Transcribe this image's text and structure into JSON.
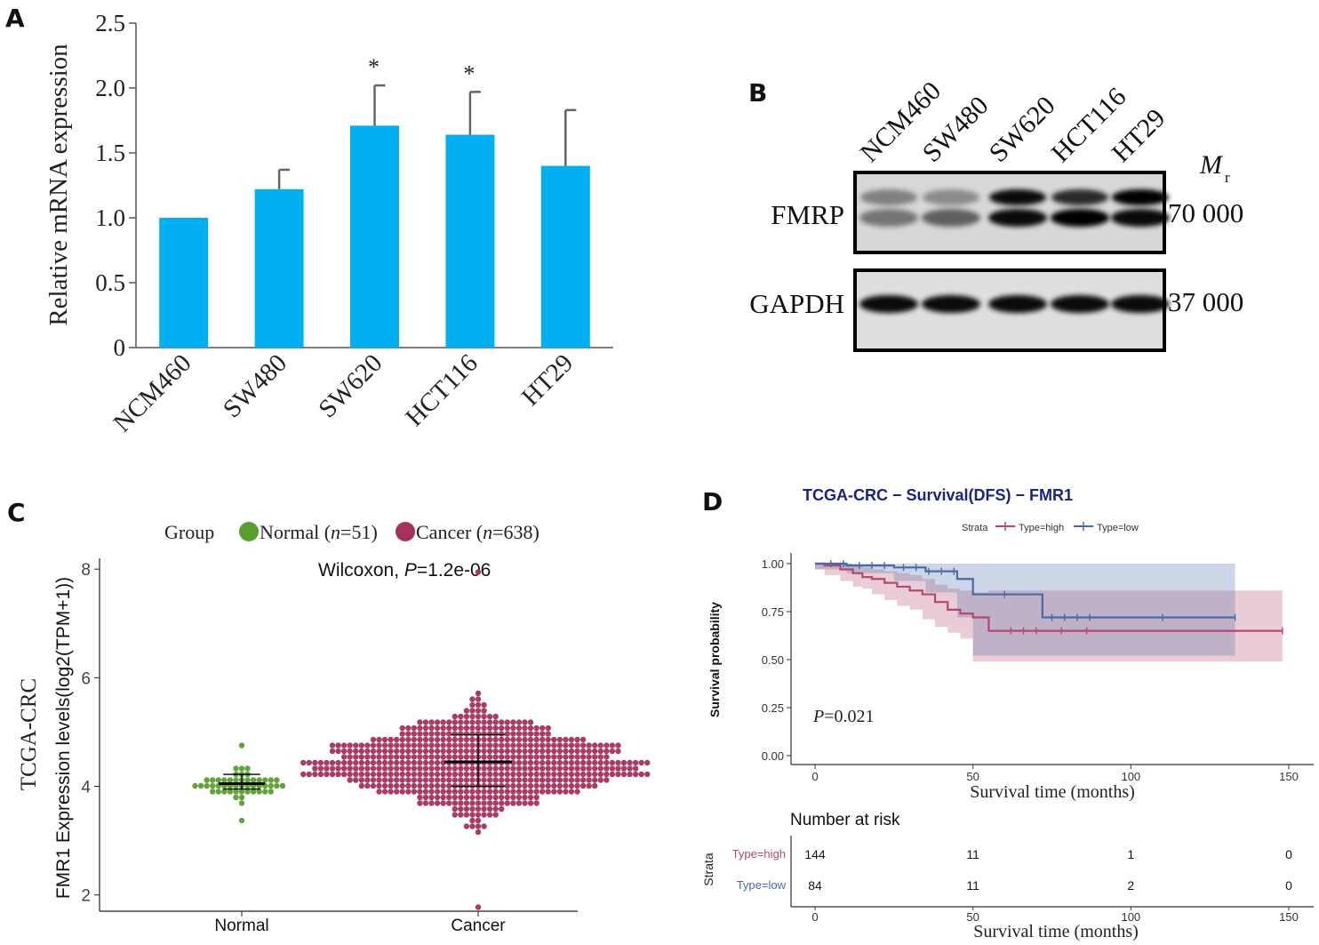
{
  "panels": {
    "a": "A",
    "b": "B",
    "c": "C",
    "d": "D"
  },
  "chart_data": [
    {
      "type": "bar",
      "panel": "A",
      "ylabel": "Relative mRNA expression",
      "ylim": [
        0,
        2.5
      ],
      "yticks": [
        "0",
        "0.5",
        "1.0",
        "1.5",
        "2.0",
        "2.5"
      ],
      "categories": [
        "NCM460",
        "SW480",
        "SW620",
        "HCT116",
        "HT29"
      ],
      "values": [
        1.0,
        1.22,
        1.71,
        1.64,
        1.4
      ],
      "errors": [
        0.0,
        0.15,
        0.31,
        0.33,
        0.43
      ],
      "significance": [
        "",
        "",
        "*",
        "*",
        ""
      ],
      "bar_color": "#00b0f0"
    },
    {
      "type": "scatter",
      "panel": "C",
      "title_side": "TCGA-CRC",
      "ylabel": "FMR1 Expression levels(log2(TPM+1))",
      "legend_title": "Group",
      "legend": [
        {
          "label": "Normal (n=51)",
          "color": "#5a9e32"
        },
        {
          "label": "Cancer (n=638)",
          "color": "#a3325f"
        }
      ],
      "annotation": "Wilcoxon,  P=1.2e-06",
      "ylim": [
        1.7,
        8.2
      ],
      "yticks": [
        "2",
        "4",
        "6",
        "8"
      ],
      "categories": [
        "Normal",
        "Cancer"
      ],
      "series": [
        {
          "name": "Normal",
          "n": 51,
          "median": 4.05,
          "q1": 3.95,
          "q3": 4.22,
          "min": 3.35,
          "max": 4.8
        },
        {
          "name": "Cancer",
          "n": 638,
          "median": 4.45,
          "q1": 4.0,
          "q3": 4.95,
          "min": 1.8,
          "max": 7.9
        }
      ]
    },
    {
      "type": "line",
      "panel": "D",
      "title": "TCGA-CRC − Survival(DFS) − FMR1",
      "legend_title": "Strata",
      "legend": [
        {
          "label": "Type=high",
          "color": "#b5486b"
        },
        {
          "label": "Type=low",
          "color": "#4a6aa5"
        }
      ],
      "xlabel": "Survival time (months)",
      "ylabel": "Survival probability",
      "xlim": [
        0,
        150
      ],
      "ylim": [
        0,
        1
      ],
      "xticks": [
        "0",
        "50",
        "100",
        "150"
      ],
      "yticks": [
        "0.00",
        "0.25",
        "0.50",
        "0.75",
        "1.00"
      ],
      "annotation": "P=0.021",
      "series": [
        {
          "name": "Type=high",
          "x": [
            0,
            3,
            8,
            12,
            15,
            18,
            22,
            26,
            30,
            34,
            38,
            42,
            46,
            50,
            55,
            148
          ],
          "y": [
            1.0,
            0.99,
            0.97,
            0.95,
            0.93,
            0.92,
            0.9,
            0.88,
            0.86,
            0.84,
            0.8,
            0.76,
            0.74,
            0.72,
            0.65,
            0.65
          ],
          "ci_upper": [
            1.0,
            1.0,
            1.0,
            0.99,
            0.98,
            0.97,
            0.96,
            0.95,
            0.94,
            0.92,
            0.89,
            0.87,
            0.86,
            0.85,
            0.86,
            0.86
          ],
          "ci_lower": [
            1.0,
            0.97,
            0.94,
            0.91,
            0.88,
            0.87,
            0.84,
            0.81,
            0.78,
            0.76,
            0.71,
            0.67,
            0.64,
            0.61,
            0.49,
            0.49
          ]
        },
        {
          "name": "Type=low",
          "x": [
            0,
            10,
            25,
            35,
            45,
            50,
            72,
            133
          ],
          "y": [
            1.0,
            0.99,
            0.98,
            0.96,
            0.92,
            0.84,
            0.72,
            0.72
          ],
          "ci_upper": [
            1.0,
            1.0,
            1.0,
            1.0,
            1.0,
            1.0,
            1.0,
            1.0
          ],
          "ci_lower": [
            1.0,
            0.97,
            0.95,
            0.91,
            0.85,
            0.72,
            0.52,
            0.52
          ]
        }
      ],
      "risk_table": {
        "title": "Number at risk",
        "ylabel": "Strata",
        "rows": [
          {
            "label": "Type=high",
            "values": [
              "144",
              "11",
              "1",
              "0"
            ]
          },
          {
            "label": "Type=low",
            "values": [
              "84",
              "11",
              "2",
              "0"
            ]
          }
        ],
        "xlabel": "Survival time (months)"
      }
    }
  ],
  "blot": {
    "panel": "B",
    "lanes": [
      "NCM460",
      "SW480",
      "SW620",
      "HCT116",
      "HT29"
    ],
    "rows": [
      {
        "label": "FMRP",
        "mw": "70 000"
      },
      {
        "label": "GAPDH",
        "mw": "37 000"
      }
    ],
    "mr_label": "M",
    "mr_sub": "r"
  }
}
